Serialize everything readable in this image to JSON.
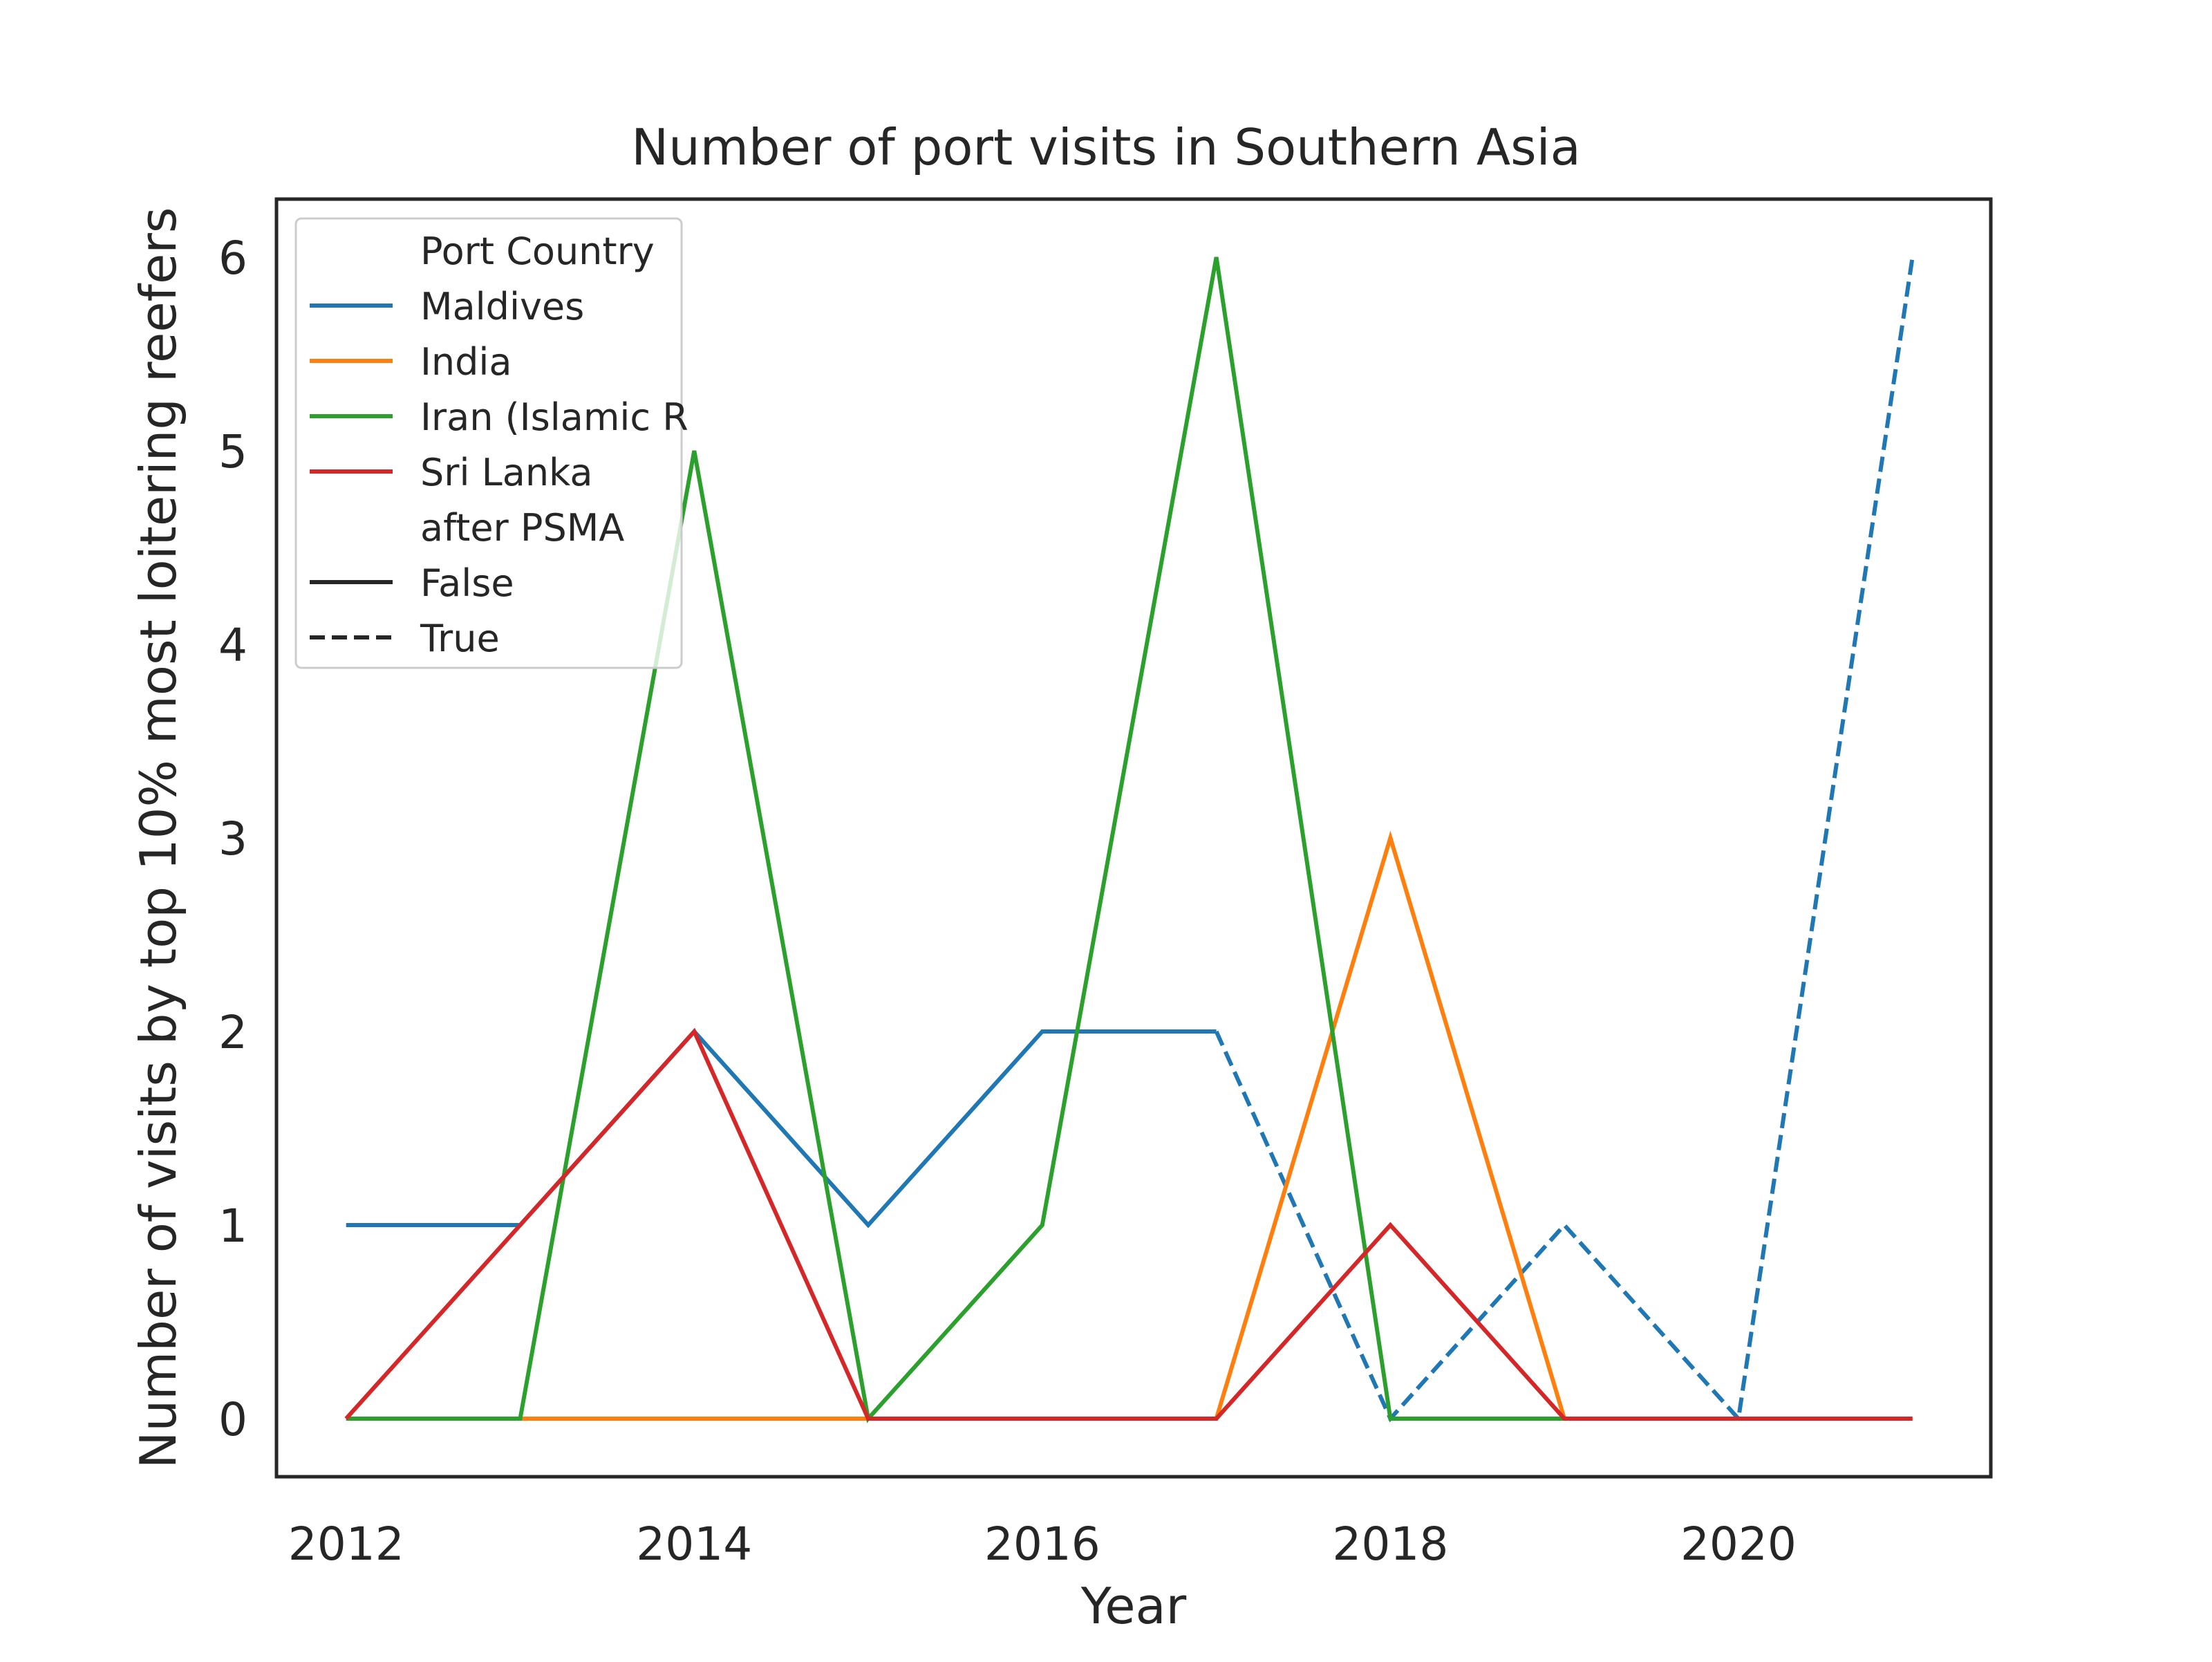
{
  "chart_data": {
    "type": "line",
    "title": "Number of port visits in Southern Asia",
    "xlabel": "Year",
    "ylabel": "Number of visits by top 10% most loitering reefers",
    "xlim": [
      2011.6,
      2021.45
    ],
    "ylim": [
      -0.3,
      6.3
    ],
    "xticks": [
      2012,
      2014,
      2016,
      2018,
      2020
    ],
    "yticks": [
      0,
      1,
      2,
      3,
      4,
      5,
      6
    ],
    "grid": false,
    "legend": {
      "placement": "top-left",
      "hue_title": "Port Country",
      "style_title": "after PSMA",
      "styles": [
        {
          "label": "False",
          "dash": "solid"
        },
        {
          "label": "True",
          "dash": "dashed"
        }
      ]
    },
    "series": [
      {
        "name": "Maldives",
        "color": "#1f77b4",
        "segments": [
          {
            "after_psma": "False",
            "x": [
              2012,
              2013,
              2014,
              2015,
              2016,
              2017
            ],
            "y": [
              1,
              1,
              2,
              1,
              2,
              2
            ]
          },
          {
            "after_psma": "True",
            "x": [
              2017,
              2018,
              2019,
              2020,
              2021
            ],
            "y": [
              2,
              0,
              1,
              0,
              6
            ]
          }
        ]
      },
      {
        "name": "India",
        "color": "#ff7f0e",
        "segments": [
          {
            "after_psma": "False",
            "x": [
              2012,
              2013,
              2014,
              2015,
              2016,
              2017,
              2018,
              2019,
              2020,
              2021
            ],
            "y": [
              0,
              0,
              0,
              0,
              0,
              0,
              3,
              0,
              0,
              0
            ]
          }
        ]
      },
      {
        "name": "Iran (Islamic R",
        "color": "#2ca02c",
        "segments": [
          {
            "after_psma": "False",
            "x": [
              2012,
              2013,
              2014,
              2015,
              2016,
              2017,
              2018,
              2019
            ],
            "y": [
              0,
              0,
              5,
              0,
              1,
              6,
              0,
              0
            ]
          }
        ]
      },
      {
        "name": "Sri Lanka",
        "color": "#d62728",
        "segments": [
          {
            "after_psma": "False",
            "x": [
              2012,
              2013,
              2014,
              2015,
              2016,
              2017,
              2018,
              2019,
              2020,
              2021
            ],
            "y": [
              0,
              1,
              2,
              0,
              0,
              0,
              1,
              0,
              0,
              0
            ]
          }
        ]
      }
    ]
  }
}
